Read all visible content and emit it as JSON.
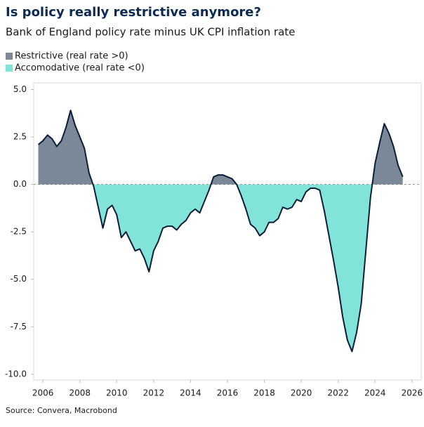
{
  "chart_data": {
    "type": "area",
    "title": "Is policy really restrictive anymore?",
    "subtitle": "Bank of England policy rate minus UK CPI inflation rate",
    "source": "Source: Convera, Macrobond",
    "legend": [
      {
        "label": "Restrictive (real rate >0)",
        "color": "#7b8898",
        "side": "positive"
      },
      {
        "label": "Accomodative (real rate <0)",
        "color": "#82e3d9",
        "side": "negative"
      }
    ],
    "line_color": "#0b1d3a",
    "x": [
      2005.75,
      2006,
      2006.25,
      2006.5,
      2006.75,
      2007,
      2007.25,
      2007.5,
      2007.75,
      2008,
      2008.25,
      2008.5,
      2008.75,
      2009,
      2009.25,
      2009.5,
      2009.75,
      2010,
      2010.25,
      2010.5,
      2010.75,
      2011,
      2011.25,
      2011.5,
      2011.75,
      2012,
      2012.25,
      2012.5,
      2012.75,
      2013,
      2013.25,
      2013.5,
      2013.75,
      2014,
      2014.25,
      2014.5,
      2014.75,
      2015,
      2015.25,
      2015.5,
      2015.75,
      2016,
      2016.25,
      2016.5,
      2016.75,
      2017,
      2017.25,
      2017.5,
      2017.75,
      2018,
      2018.25,
      2018.5,
      2018.75,
      2019,
      2019.25,
      2019.5,
      2019.75,
      2020,
      2020.25,
      2020.5,
      2020.75,
      2021,
      2021.25,
      2021.5,
      2021.75,
      2022,
      2022.25,
      2022.5,
      2022.75,
      2023,
      2023.25,
      2023.5,
      2023.75,
      2024,
      2024.25,
      2024.5,
      2024.75,
      2025,
      2025.25,
      2025.5
    ],
    "values": [
      2.1,
      2.3,
      2.6,
      2.4,
      2.0,
      2.3,
      3.0,
      3.9,
      3.1,
      2.5,
      1.9,
      0.6,
      -0.1,
      -1.2,
      -2.3,
      -1.3,
      -1.1,
      -1.6,
      -2.8,
      -2.5,
      -3.0,
      -3.5,
      -3.4,
      -3.9,
      -4.6,
      -3.5,
      -3.0,
      -2.3,
      -2.2,
      -2.2,
      -2.4,
      -2.1,
      -1.9,
      -1.5,
      -1.3,
      -1.5,
      -0.9,
      -0.3,
      0.4,
      0.5,
      0.5,
      0.4,
      0.3,
      0.0,
      -0.6,
      -1.3,
      -2.1,
      -2.3,
      -2.7,
      -2.5,
      -2.0,
      -2.0,
      -1.8,
      -1.2,
      -1.3,
      -1.2,
      -0.8,
      -0.9,
      -0.4,
      -0.2,
      -0.2,
      -0.3,
      -1.4,
      -2.7,
      -4.0,
      -5.4,
      -7.0,
      -8.2,
      -8.8,
      -7.8,
      -6.3,
      -3.5,
      -0.7,
      1.1,
      2.2,
      3.2,
      2.7,
      2.0,
      1.0,
      0.4
    ],
    "xlim": [
      2005.5,
      2026.5
    ],
    "ylim": [
      -10.3,
      5.35
    ],
    "xticks": [
      2006,
      2008,
      2010,
      2012,
      2014,
      2016,
      2018,
      2020,
      2022,
      2024,
      2026
    ],
    "yticks": [
      {
        "value": 5,
        "label": "5.0"
      },
      {
        "value": 2.5,
        "label": "2.5"
      },
      {
        "value": 0,
        "label": "0.0"
      },
      {
        "value": -2.5,
        "label": "-2.5"
      },
      {
        "value": -5,
        "label": "-5.0"
      },
      {
        "value": -7.5,
        "label": "-7.5"
      },
      {
        "value": -10,
        "label": "-10.0"
      }
    ]
  }
}
